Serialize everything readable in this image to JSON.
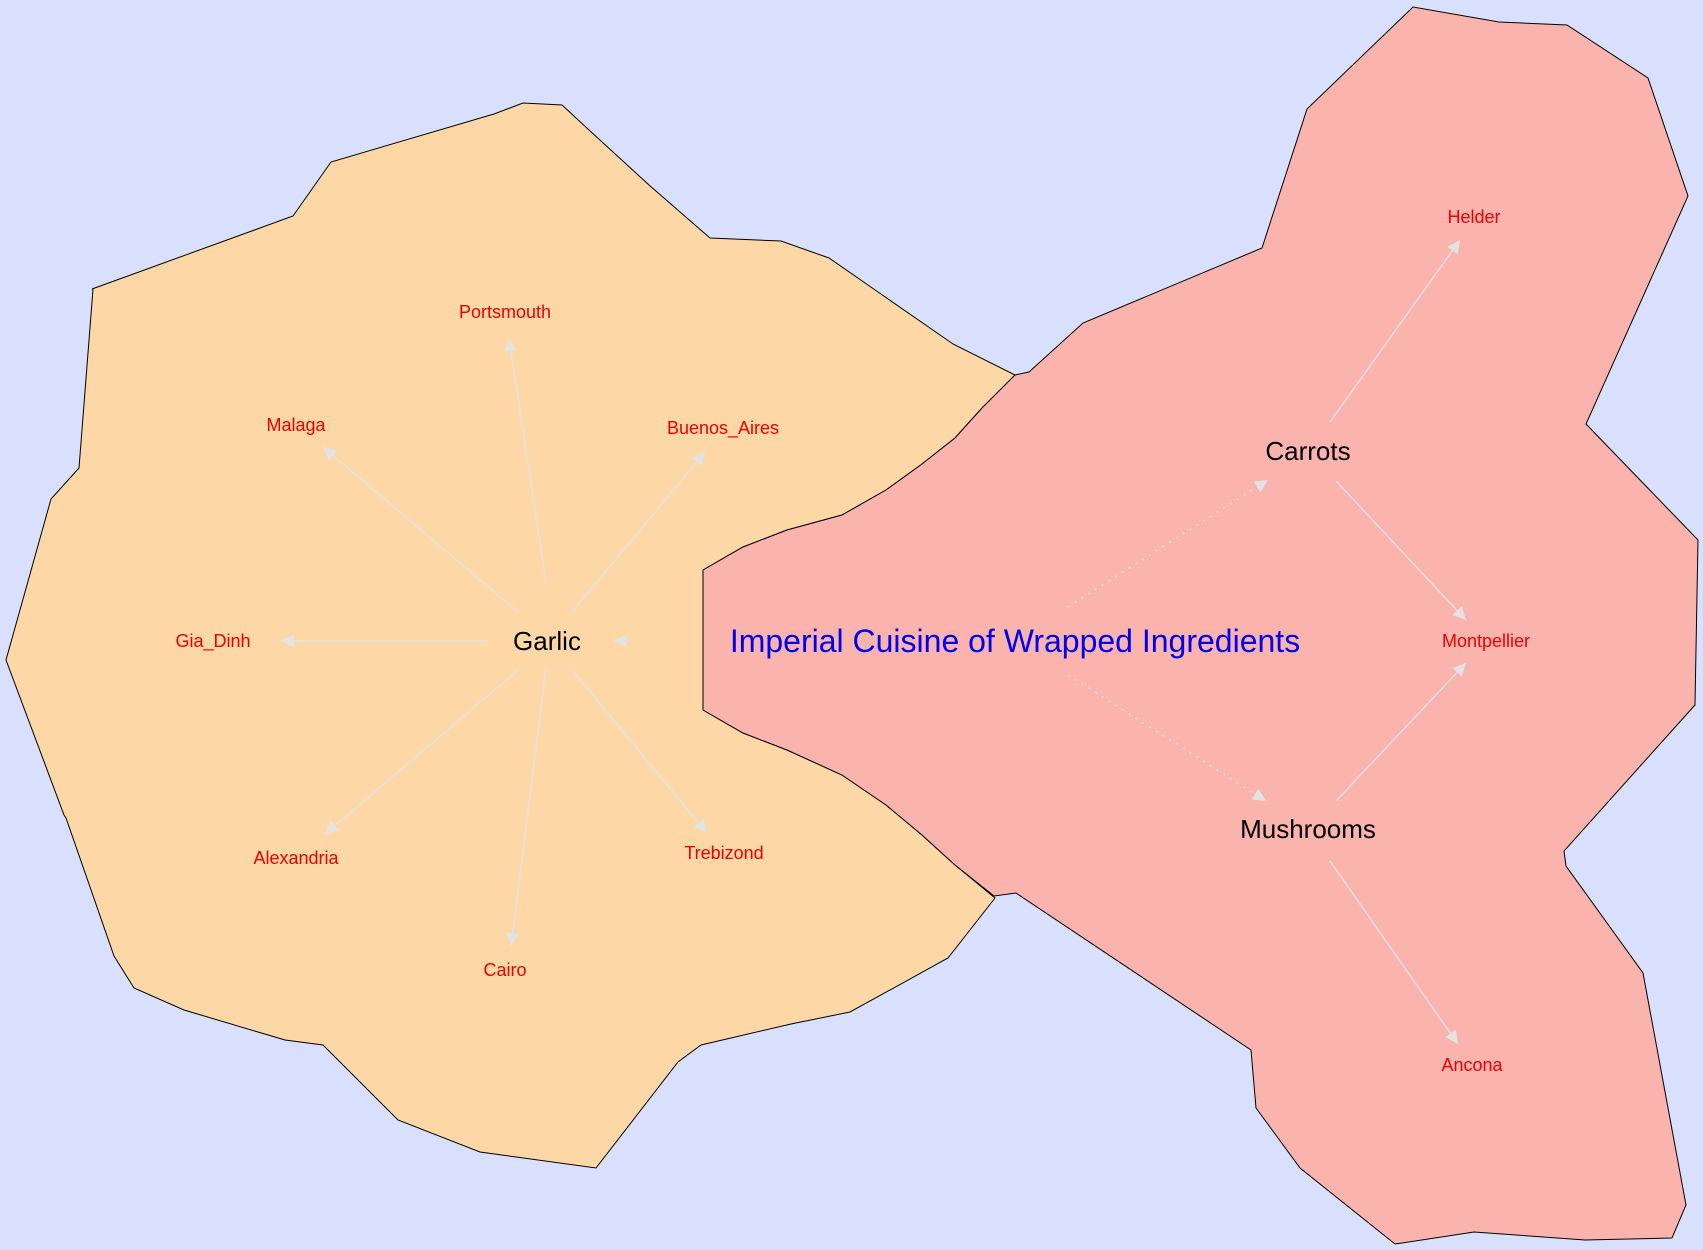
{
  "title": "Imperial Cuisine of Wrapped Ingredients",
  "colors": {
    "background": "#d9e0fd",
    "garlic_region": "#fdd7a6",
    "vegetable_region": "#fab3ad",
    "city_label": "#ee0000",
    "title_label": "#0000ee",
    "edge": "#e3e3e3"
  },
  "ingredients": {
    "garlic": "Garlic",
    "carrots": "Carrots",
    "mushrooms": "Mushrooms"
  },
  "cities": {
    "portsmouth": "Portsmouth",
    "malaga": "Malaga",
    "buenos_aires": "Buenos_Aires",
    "gia_dinh": "Gia_Dinh",
    "alexandria": "Alexandria",
    "trebizond": "Trebizond",
    "cairo": "Cairo",
    "helder": "Helder",
    "montpellier": "Montpellier",
    "ancona": "Ancona"
  },
  "edges": [
    {
      "from": "Garlic",
      "to": "Portsmouth"
    },
    {
      "from": "Garlic",
      "to": "Malaga"
    },
    {
      "from": "Garlic",
      "to": "Buenos_Aires"
    },
    {
      "from": "Garlic",
      "to": "Gia_Dinh"
    },
    {
      "from": "Garlic",
      "to": "Alexandria"
    },
    {
      "from": "Garlic",
      "to": "Trebizond"
    },
    {
      "from": "Garlic",
      "to": "Cairo"
    },
    {
      "from": "Imperial Cuisine of Wrapped Ingredients",
      "to": "Garlic"
    },
    {
      "from": "Imperial Cuisine of Wrapped Ingredients",
      "to": "Carrots",
      "style": "dotted"
    },
    {
      "from": "Imperial Cuisine of Wrapped Ingredients",
      "to": "Mushrooms",
      "style": "dotted"
    },
    {
      "from": "Carrots",
      "to": "Helder"
    },
    {
      "from": "Carrots",
      "to": "Montpellier"
    },
    {
      "from": "Mushrooms",
      "to": "Montpellier"
    },
    {
      "from": "Mushrooms",
      "to": "Ancona"
    }
  ]
}
